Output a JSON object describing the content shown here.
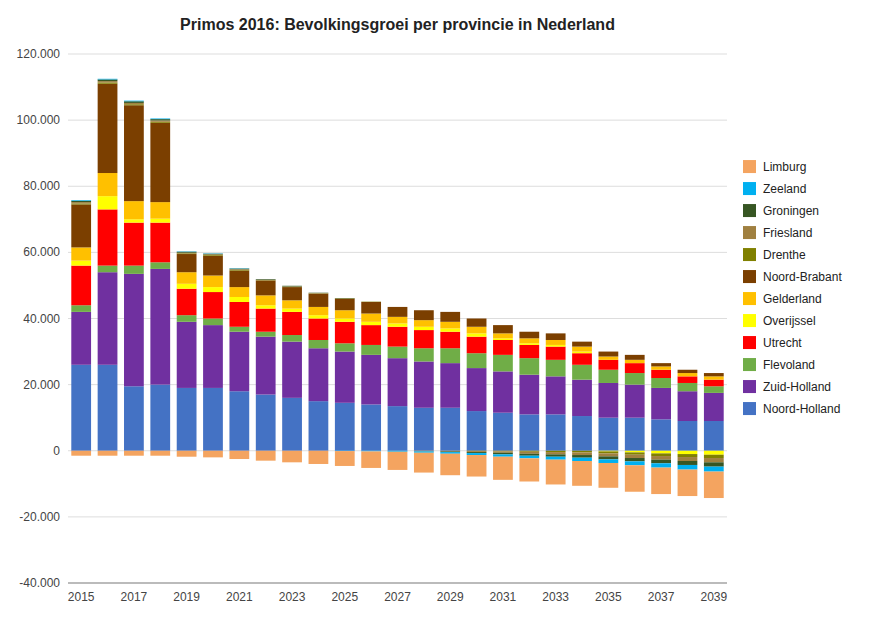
{
  "chart_data": {
    "type": "bar",
    "title": "Primos 2016: Bevolkingsgroei per provincie in Nederland",
    "stacked": true,
    "grid": true,
    "legend": "right",
    "categories": [
      "2015",
      null,
      "2017",
      null,
      "2019",
      null,
      "2021",
      null,
      "2023",
      null,
      "2025",
      null,
      "2027",
      null,
      "2029",
      null,
      "2031",
      null,
      "2033",
      null,
      "2035",
      null,
      "2037",
      null,
      "2039"
    ],
    "series": [
      {
        "name": "Noord-Holland",
        "color": "#4472C4",
        "values": [
          26000,
          26000,
          19500,
          20000,
          19000,
          19000,
          18000,
          17000,
          16000,
          15000,
          14500,
          14000,
          13500,
          13000,
          13000,
          12000,
          11500,
          11000,
          11000,
          10500,
          10000,
          10000,
          9500,
          9000,
          9000
        ]
      },
      {
        "name": "Zuid-Holland",
        "color": "#7030A0",
        "values": [
          16000,
          28000,
          34000,
          35000,
          20000,
          19000,
          18000,
          17500,
          17000,
          16000,
          15500,
          15000,
          14500,
          14000,
          13500,
          13000,
          12500,
          12000,
          11500,
          11000,
          10500,
          10000,
          9500,
          9000,
          8500
        ]
      },
      {
        "name": "Flevoland",
        "color": "#70AD47",
        "values": [
          2000,
          2000,
          2500,
          2000,
          2000,
          2000,
          1500,
          1500,
          2000,
          2500,
          2500,
          3000,
          3500,
          4000,
          4500,
          4500,
          5000,
          5000,
          5000,
          4500,
          4000,
          3500,
          3000,
          2500,
          2000
        ]
      },
      {
        "name": "Utrecht",
        "color": "#FF0000",
        "values": [
          12000,
          17000,
          13000,
          12000,
          8000,
          8000,
          7500,
          7000,
          7000,
          6500,
          6500,
          6000,
          6000,
          5500,
          5000,
          5000,
          4500,
          4000,
          4000,
          3500,
          3000,
          3000,
          2500,
          2000,
          2000
        ]
      },
      {
        "name": "Overijssel",
        "color": "#FFFF00",
        "values": [
          1500,
          4000,
          1000,
          1200,
          1500,
          1500,
          1500,
          1000,
          1000,
          1000,
          1000,
          1000,
          1000,
          1000,
          1000,
          1000,
          500,
          500,
          500,
          500,
          -200,
          -500,
          -800,
          -1000,
          -1200
        ]
      },
      {
        "name": "Gelderland",
        "color": "#FFC000",
        "values": [
          4000,
          7000,
          5500,
          5000,
          3500,
          3500,
          3000,
          3000,
          2500,
          2500,
          2500,
          2500,
          2000,
          2000,
          2000,
          2000,
          1500,
          1500,
          1500,
          1500,
          1000,
          1000,
          1000,
          1000,
          1000
        ]
      },
      {
        "name": "Noord-Brabant",
        "color": "#7B3F00",
        "values": [
          13000,
          27000,
          29000,
          24000,
          5500,
          6000,
          5000,
          4500,
          4000,
          4000,
          3500,
          3500,
          3000,
          3000,
          3000,
          2500,
          2500,
          2000,
          2000,
          1500,
          1500,
          1500,
          1000,
          1000,
          1000
        ]
      },
      {
        "name": "Drenthe",
        "color": "#808000",
        "values": [
          300,
          400,
          300,
          300,
          200,
          200,
          200,
          100,
          100,
          100,
          100,
          100,
          0,
          0,
          0,
          -100,
          -200,
          -300,
          -400,
          -500,
          -600,
          -700,
          -800,
          -900,
          -1000
        ]
      },
      {
        "name": "Friesland",
        "color": "#A08040",
        "values": [
          400,
          400,
          400,
          400,
          200,
          200,
          200,
          100,
          100,
          100,
          0,
          0,
          0,
          -100,
          -200,
          -300,
          -400,
          -600,
          -700,
          -800,
          -900,
          -1000,
          -1100,
          -1200,
          -1300
        ]
      },
      {
        "name": "Groningen",
        "color": "#375623",
        "values": [
          400,
          500,
          500,
          400,
          300,
          200,
          200,
          200,
          200,
          100,
          100,
          0,
          0,
          -100,
          -200,
          -300,
          -500,
          -600,
          -700,
          -800,
          -900,
          -1000,
          -1100,
          -1200,
          -1300
        ]
      },
      {
        "name": "Zeeland",
        "color": "#00B0F0",
        "values": [
          200,
          200,
          200,
          200,
          100,
          100,
          100,
          0,
          0,
          0,
          -100,
          -200,
          -300,
          -400,
          -500,
          -600,
          -700,
          -800,
          -900,
          -1000,
          -1100,
          -1200,
          -1300,
          -1400,
          -1500
        ]
      },
      {
        "name": "Limburg",
        "color": "#F4A460",
        "values": [
          -1500,
          -1500,
          -1500,
          -1500,
          -1800,
          -2000,
          -2500,
          -3000,
          -3500,
          -4000,
          -4500,
          -5000,
          -5500,
          -6000,
          -6500,
          -6500,
          -7000,
          -7000,
          -7500,
          -7500,
          -7500,
          -8000,
          -8000,
          -8000,
          -8000
        ]
      }
    ],
    "ylim": [
      -40000,
      120000
    ],
    "yticks": [
      {
        "value": -40000,
        "label": "-40.000"
      },
      {
        "value": -20000,
        "label": "-20.000"
      },
      0,
      {
        "value": 20000,
        "label": "20.000"
      },
      {
        "value": 40000,
        "label": "40.000"
      },
      {
        "value": 60000,
        "label": "60.000"
      },
      {
        "value": 80000,
        "label": "80.000"
      },
      {
        "value": 100000,
        "label": "100.000"
      },
      {
        "value": 120000,
        "label": "120.000"
      }
    ]
  }
}
